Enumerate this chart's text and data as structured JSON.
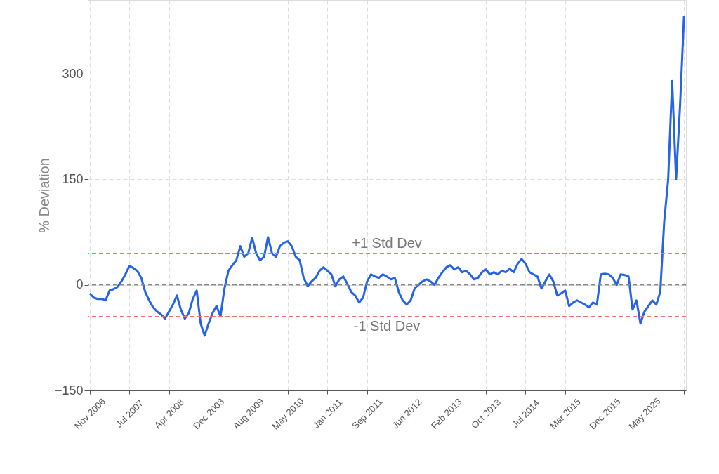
{
  "chart_data": {
    "type": "line",
    "ylabel": "% Deviation",
    "categories": [
      "Nov 2006",
      null,
      null,
      null,
      null,
      null,
      null,
      null,
      null,
      null,
      "Jul 2007",
      null,
      null,
      null,
      null,
      null,
      null,
      null,
      null,
      null,
      "Apr 2008",
      null,
      null,
      null,
      null,
      null,
      null,
      null,
      null,
      null,
      "Dec 2008",
      null,
      null,
      null,
      null,
      null,
      null,
      null,
      null,
      null,
      "Aug 2009",
      null,
      null,
      null,
      null,
      null,
      null,
      null,
      null,
      null,
      "May 2010",
      null,
      null,
      null,
      null,
      null,
      null,
      null,
      null,
      null,
      "Jan 2011",
      null,
      null,
      null,
      null,
      null,
      null,
      null,
      null,
      null,
      "Sep 2011",
      null,
      null,
      null,
      null,
      null,
      null,
      null,
      null,
      null,
      "Jun 2012",
      null,
      null,
      null,
      null,
      null,
      null,
      null,
      null,
      null,
      "Feb 2013",
      null,
      null,
      null,
      null,
      null,
      null,
      null,
      null,
      null,
      "Oct 2013",
      null,
      null,
      null,
      null,
      null,
      null,
      null,
      null,
      null,
      "Jul 2014",
      null,
      null,
      null,
      null,
      null,
      null,
      null,
      null,
      null,
      "Mar 2015",
      null,
      null,
      null,
      null,
      null,
      null,
      null,
      null,
      null,
      "Dec 2015",
      null,
      null,
      null,
      null,
      null,
      null,
      null,
      null,
      null,
      "May 2025",
      null,
      null,
      null,
      null,
      null,
      null,
      null,
      null,
      null,
      null
    ],
    "series": [
      {
        "color": "#2563eb",
        "values": [
          -12,
          -18,
          -20,
          -20,
          -22,
          -8,
          -6,
          -3,
          5,
          15,
          27,
          24,
          20,
          10,
          -10,
          -22,
          -32,
          -38,
          -42,
          -48,
          -38,
          -28,
          -15,
          -35,
          -48,
          -40,
          -20,
          -8,
          -55,
          -72,
          -55,
          -40,
          -30,
          -45,
          -5,
          20,
          28,
          35,
          55,
          40,
          45,
          67,
          45,
          35,
          40,
          68,
          45,
          40,
          55,
          60,
          62,
          55,
          40,
          35,
          10,
          -2,
          5,
          10,
          20,
          25,
          20,
          15,
          -2,
          8,
          12,
          2,
          -10,
          -15,
          -25,
          -18,
          5,
          15,
          12,
          10,
          15,
          12,
          8,
          10,
          -10,
          -22,
          -28,
          -22,
          -5,
          0,
          5,
          8,
          5,
          0,
          10,
          18,
          25,
          28,
          22,
          25,
          18,
          20,
          15,
          8,
          10,
          18,
          22,
          15,
          18,
          15,
          20,
          18,
          23,
          18,
          30,
          37,
          30,
          18,
          15,
          12,
          -5,
          5,
          15,
          5,
          -15,
          -12,
          -8,
          -30,
          -25,
          -22,
          -25,
          -28,
          -32,
          -25,
          -28,
          15,
          16,
          15,
          10,
          0,
          15,
          14,
          12,
          -35,
          -22,
          -55,
          -38,
          -30,
          -22,
          -28,
          -10,
          90,
          150,
          290,
          150,
          255,
          382
        ]
      }
    ],
    "ylim": [
      -150,
      405
    ],
    "yticks": [
      -150,
      0,
      150,
      300
    ],
    "grid": true,
    "line_style": "solid",
    "marker": "none",
    "ref_lines": [
      {
        "axis": "y",
        "value": 45,
        "label": "+1 Std Dev",
        "color": "#f87171",
        "line_style": "dashed"
      },
      {
        "axis": "y",
        "value": -45,
        "label": "-1 Std Dev",
        "color": "#f87171",
        "line_style": "dashed"
      },
      {
        "axis": "y",
        "value": 0,
        "label": null,
        "color": "#888888",
        "line_style": "dashed"
      }
    ]
  }
}
